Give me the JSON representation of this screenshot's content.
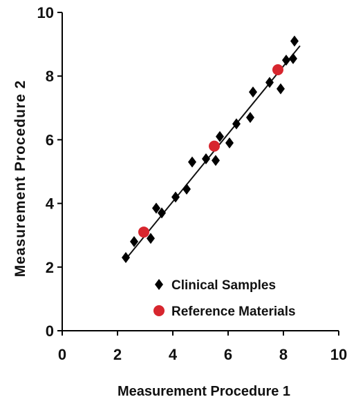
{
  "chart_data": {
    "type": "scatter",
    "title": "",
    "xlabel": "Measurement Procedure 1",
    "ylabel": "Measurement Procedure 2",
    "xlim": [
      0,
      10
    ],
    "ylim": [
      0,
      10
    ],
    "xticks": [
      0,
      2,
      4,
      6,
      8,
      10
    ],
    "yticks": [
      0,
      2,
      4,
      6,
      8,
      10
    ],
    "grid": false,
    "legend_position": "bottom-right",
    "series": [
      {
        "name": "Clinical Samples",
        "marker": "diamond",
        "color": "#000000",
        "points": [
          {
            "x": 2.3,
            "y": 2.3
          },
          {
            "x": 2.6,
            "y": 2.8
          },
          {
            "x": 3.2,
            "y": 2.9
          },
          {
            "x": 3.4,
            "y": 3.85
          },
          {
            "x": 3.6,
            "y": 3.7
          },
          {
            "x": 4.1,
            "y": 4.2
          },
          {
            "x": 4.5,
            "y": 4.45
          },
          {
            "x": 4.7,
            "y": 5.3
          },
          {
            "x": 5.2,
            "y": 5.4
          },
          {
            "x": 5.55,
            "y": 5.35
          },
          {
            "x": 5.7,
            "y": 6.1
          },
          {
            "x": 6.05,
            "y": 5.9
          },
          {
            "x": 6.3,
            "y": 6.5
          },
          {
            "x": 6.8,
            "y": 6.7
          },
          {
            "x": 6.9,
            "y": 7.5
          },
          {
            "x": 7.5,
            "y": 7.8
          },
          {
            "x": 7.9,
            "y": 7.6
          },
          {
            "x": 8.1,
            "y": 8.5
          },
          {
            "x": 8.35,
            "y": 8.55
          },
          {
            "x": 8.4,
            "y": 9.1
          }
        ]
      },
      {
        "name": "Reference Materials",
        "marker": "circle",
        "color": "#d7262e",
        "points": [
          {
            "x": 2.95,
            "y": 3.1
          },
          {
            "x": 5.5,
            "y": 5.8
          },
          {
            "x": 7.8,
            "y": 8.2
          }
        ]
      }
    ],
    "fit_line": {
      "x1": 2.3,
      "y1": 2.25,
      "x2": 8.6,
      "y2": 8.95
    }
  }
}
